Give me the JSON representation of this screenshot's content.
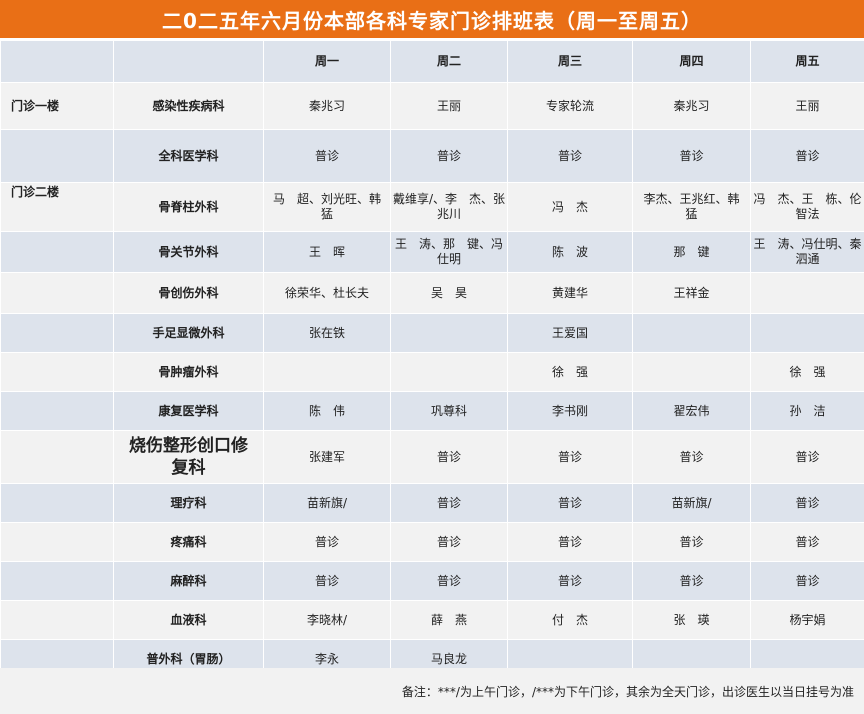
{
  "title": "二0二五年六月份本部各科专家门诊排班表（周一至周五）",
  "days": [
    "周一",
    "周二",
    "周三",
    "周四",
    "周五"
  ],
  "floors": {
    "first": "门诊一楼",
    "second": "门诊二楼"
  },
  "rows": [
    {
      "dept": "感染性疾病科",
      "cells": [
        "秦兆习",
        "王丽",
        "专家轮流",
        "秦兆习",
        "王丽"
      ]
    },
    {
      "dept": "全科医学科",
      "cells": [
        "普诊",
        "普诊",
        "普诊",
        "普诊",
        "普诊"
      ]
    },
    {
      "dept": "骨脊柱外科",
      "cells": [
        "马　超、刘光旺、韩　猛",
        "戴维享/、李　杰、张兆川",
        "冯　杰",
        "李杰、王兆红、韩　猛",
        "冯　杰、王　栋、伦智法"
      ]
    },
    {
      "dept": "骨关节外科",
      "cells": [
        "王　晖",
        "王　涛、那　键、冯仕明",
        "陈　波",
        "那　键",
        "王　涛、冯仕明、秦泗通"
      ]
    },
    {
      "dept": "骨创伤外科",
      "cells": [
        "徐荣华、杜长夫",
        "吴　昊",
        "黄建华",
        "王祥金",
        ""
      ]
    },
    {
      "dept": "手足显微外科",
      "cells": [
        "张在铁",
        "",
        "王爱国",
        "",
        ""
      ]
    },
    {
      "dept": "骨肿瘤外科",
      "cells": [
        "",
        "",
        "徐　强",
        "",
        "徐　强"
      ]
    },
    {
      "dept": "康复医学科",
      "cells": [
        "陈　伟",
        "巩尊科",
        "李书刚",
        "翟宏伟",
        "孙　洁"
      ]
    },
    {
      "dept": "烧伤整形创口修复科",
      "cells": [
        "张建军",
        "普诊",
        "普诊",
        "普诊",
        "普诊"
      ]
    },
    {
      "dept": "理疗科",
      "cells": [
        "苗新旗/",
        "普诊",
        "普诊",
        "苗新旗/",
        "普诊"
      ]
    },
    {
      "dept": "疼痛科",
      "cells": [
        "普诊",
        "普诊",
        "普诊",
        "普诊",
        "普诊"
      ]
    },
    {
      "dept": "麻醉科",
      "cells": [
        "普诊",
        "普诊",
        "普诊",
        "普诊",
        "普诊"
      ]
    },
    {
      "dept": "血液科",
      "cells": [
        "李晓林/",
        "薛　燕",
        "付　杰",
        "张　瑛",
        "杨宇娟"
      ]
    },
    {
      "dept": "普外科（胃肠）",
      "cells": [
        "李永",
        "马良龙",
        "",
        "",
        ""
      ]
    }
  ],
  "note": "备注：***/为上午门诊，/***为下午门诊，其余为全天门诊，出诊医生以当日挂号为准"
}
